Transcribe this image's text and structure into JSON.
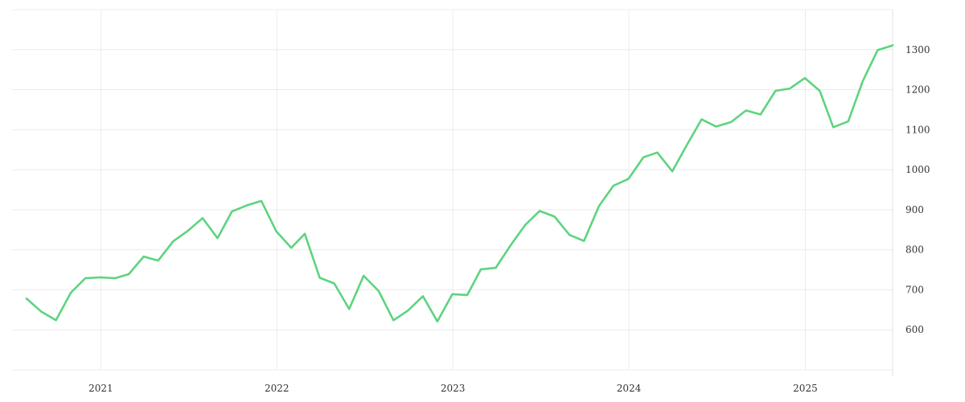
{
  "chart_data": {
    "type": "line",
    "title": "",
    "xlabel": "",
    "ylabel": "",
    "x_ticks": [
      "2021",
      "2022",
      "2023",
      "2024",
      "2025"
    ],
    "y_ticks": [
      600,
      700,
      800,
      900,
      1000,
      1100,
      1200,
      1300
    ],
    "ylim": [
      500,
      1400
    ],
    "xlim": [
      "2020-07-01",
      "2025-07-01"
    ],
    "y_axis_position": "right",
    "grid": true,
    "legend": "none",
    "colors": {
      "series": "#5dd47f",
      "grid": "#ececec",
      "text": "#333333"
    },
    "series": [
      {
        "x": [
          "2020-07-31",
          "2020-08-31",
          "2020-09-30",
          "2020-10-31",
          "2020-11-30",
          "2020-12-31",
          "2021-01-31",
          "2021-02-28",
          "2021-03-31",
          "2021-04-30",
          "2021-05-31",
          "2021-06-30",
          "2021-07-31",
          "2021-08-31",
          "2021-09-30",
          "2021-10-31",
          "2021-11-30",
          "2021-12-31",
          "2022-01-31",
          "2022-02-28",
          "2022-03-31",
          "2022-04-30",
          "2022-05-31",
          "2022-06-30",
          "2022-07-31",
          "2022-08-31",
          "2022-09-30",
          "2022-10-31",
          "2022-11-30",
          "2022-12-31",
          "2023-01-31",
          "2023-02-28",
          "2023-03-31",
          "2023-04-30",
          "2023-05-31",
          "2023-06-30",
          "2023-07-31",
          "2023-08-31",
          "2023-09-30",
          "2023-10-31",
          "2023-11-30",
          "2023-12-31",
          "2024-01-31",
          "2024-02-29",
          "2024-03-31",
          "2024-04-30",
          "2024-05-31",
          "2024-06-30",
          "2024-07-31",
          "2024-08-31",
          "2024-09-30",
          "2024-10-31",
          "2024-11-30",
          "2024-12-31",
          "2025-01-31",
          "2025-02-28",
          "2025-03-31",
          "2025-04-30",
          "2025-05-31",
          "2025-06-30",
          "2025-07-01"
        ],
        "values": [
          678,
          645,
          624,
          693,
          729,
          731,
          729,
          739,
          783,
          773,
          821,
          847,
          879,
          829,
          896,
          911,
          922,
          846,
          805,
          840,
          730,
          716,
          652,
          735,
          697,
          624,
          648,
          684,
          621,
          689,
          687,
          751,
          755,
          810,
          862,
          897,
          883,
          837,
          822,
          909,
          960,
          977,
          1031,
          1043,
          996,
          1061,
          1126,
          1108,
          1119,
          1148,
          1138,
          1197,
          1203,
          1229,
          1197,
          1106,
          1121,
          1221,
          1299,
          1310,
          1311
        ]
      }
    ]
  }
}
